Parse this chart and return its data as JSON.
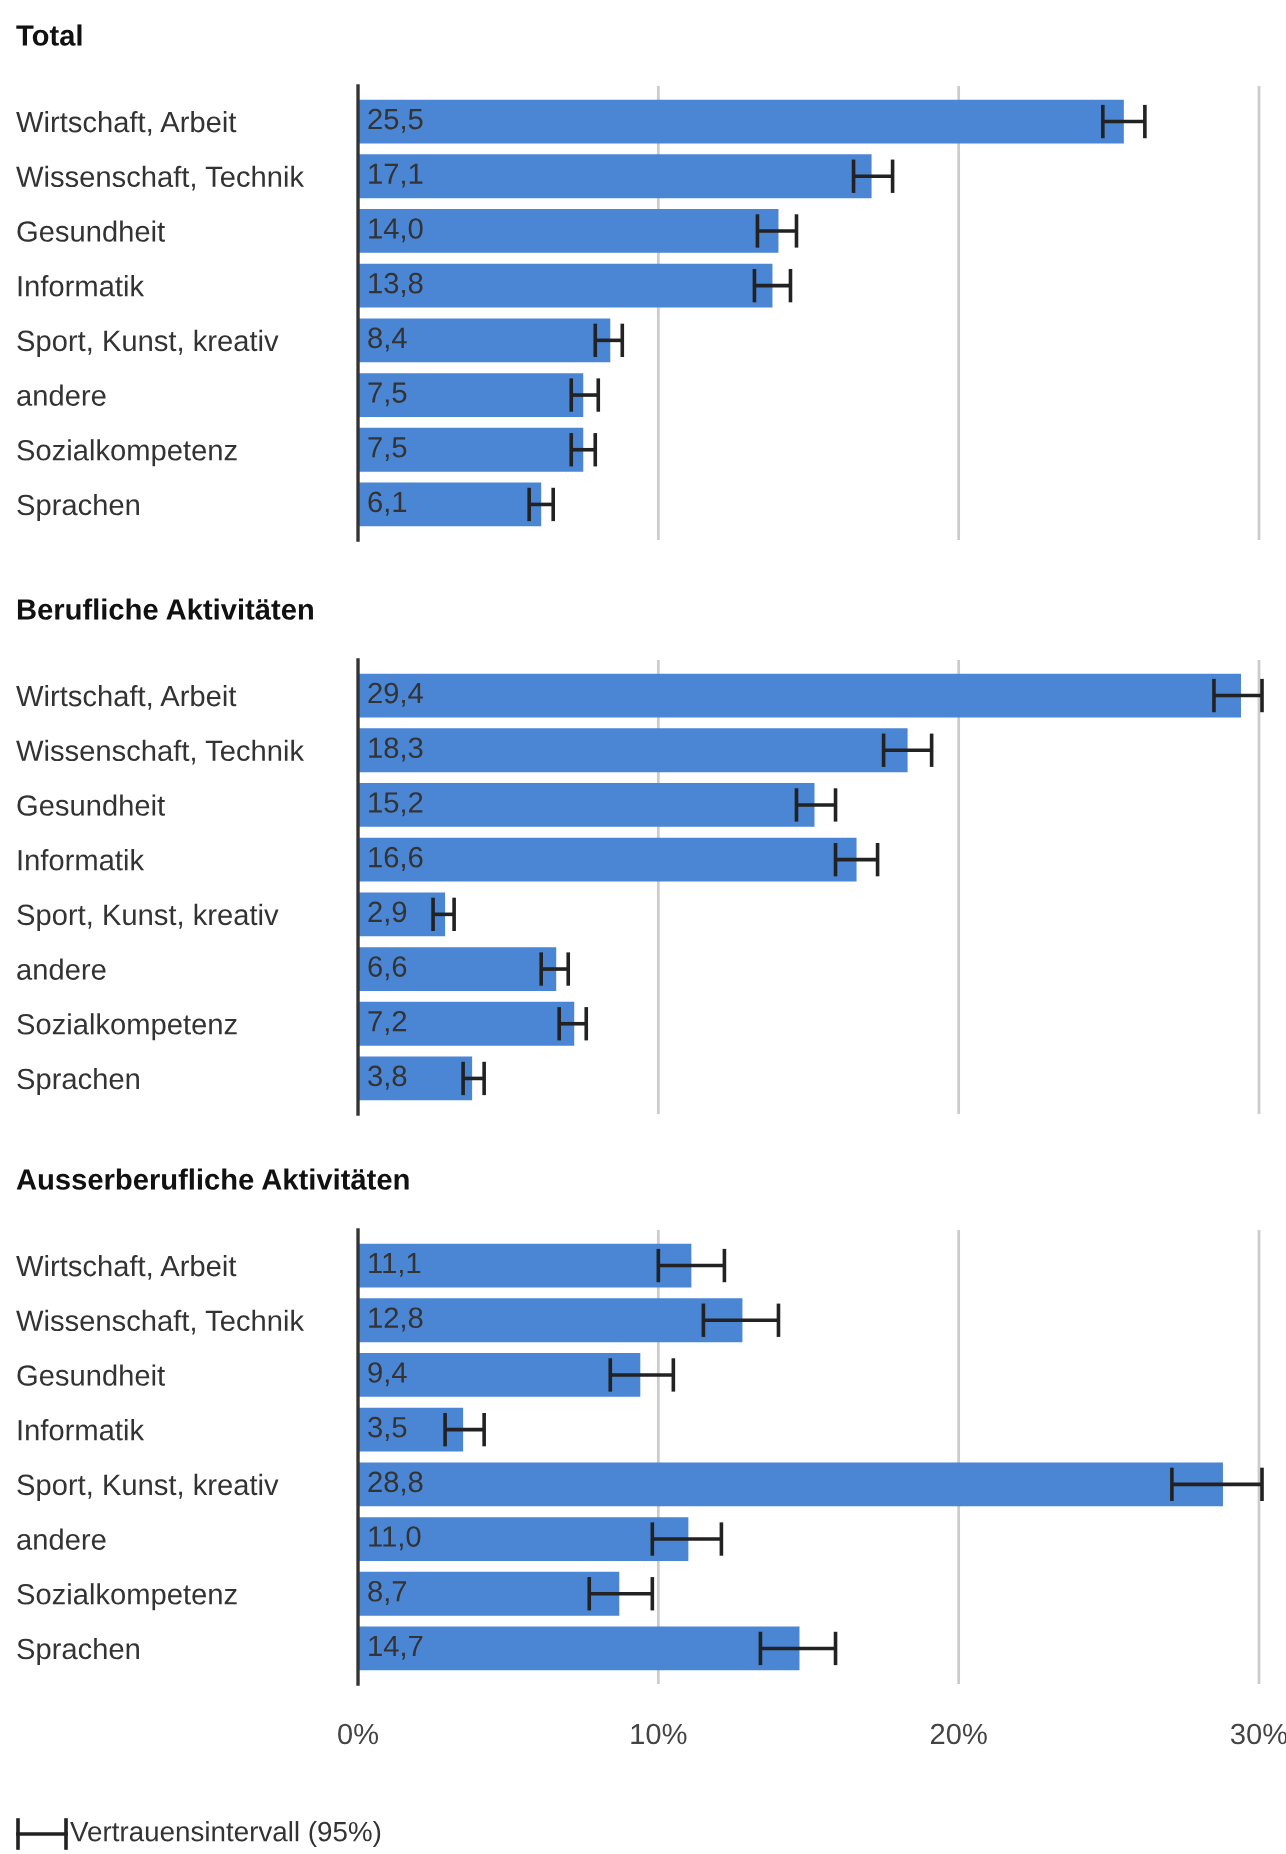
{
  "chart_data": [
    {
      "type": "bar",
      "orientation": "horizontal",
      "title": "Total",
      "categories": [
        "Wirtschaft, Arbeit",
        "Wissenschaft, Technik",
        "Gesundheit",
        "Informatik",
        "Sport, Kunst, kreativ",
        "andere",
        "Sozialkompetenz",
        "Sprachen"
      ],
      "values": [
        25.5,
        17.1,
        14.0,
        13.8,
        8.4,
        7.5,
        7.5,
        6.1
      ],
      "value_labels": [
        "25,5",
        "17,1",
        "14,0",
        "13,8",
        "8,4",
        "7,5",
        "7,5",
        "6,1"
      ],
      "errors": [
        [
          24.8,
          26.2
        ],
        [
          16.5,
          17.8
        ],
        [
          13.3,
          14.6
        ],
        [
          13.2,
          14.4
        ],
        [
          7.9,
          8.8
        ],
        [
          7.1,
          8.0
        ],
        [
          7.1,
          7.9
        ],
        [
          5.7,
          6.5
        ]
      ],
      "color": "#4a86d4",
      "xlim": [
        0,
        30.1
      ],
      "xticks": [
        0,
        10,
        20,
        30
      ],
      "grid": "x",
      "tick_labels": "y"
    },
    {
      "type": "bar",
      "orientation": "horizontal",
      "title": "Berufliche Aktivitäten",
      "categories": [
        "Wirtschaft, Arbeit",
        "Wissenschaft, Technik",
        "Gesundheit",
        "Informatik",
        "Sport, Kunst, kreativ",
        "andere",
        "Sozialkompetenz",
        "Sprachen"
      ],
      "values": [
        29.4,
        18.3,
        15.2,
        16.6,
        2.9,
        6.6,
        7.2,
        3.8
      ],
      "value_labels": [
        "29,4",
        "18,3",
        "15,2",
        "16,6",
        "2,9",
        "6,6",
        "7,2",
        "3,8"
      ],
      "errors": [
        [
          28.5,
          30.1
        ],
        [
          17.5,
          19.1
        ],
        [
          14.6,
          15.9
        ],
        [
          15.9,
          17.3
        ],
        [
          2.5,
          3.2
        ],
        [
          6.1,
          7.0
        ],
        [
          6.7,
          7.6
        ],
        [
          3.5,
          4.2
        ]
      ],
      "color": "#4a86d4",
      "xlim": [
        0,
        30.1
      ],
      "xticks": [
        0,
        10,
        20,
        30
      ],
      "grid": "x",
      "tick_labels": "y"
    },
    {
      "type": "bar",
      "orientation": "horizontal",
      "title": "Ausserberufliche Aktivitäten",
      "categories": [
        "Wirtschaft, Arbeit",
        "Wissenschaft, Technik",
        "Gesundheit",
        "Informatik",
        "Sport, Kunst, kreativ",
        "andere",
        "Sozialkompetenz",
        "Sprachen"
      ],
      "values": [
        11.1,
        12.8,
        9.4,
        3.5,
        28.8,
        11.0,
        8.7,
        14.7
      ],
      "value_labels": [
        "11,1",
        "12,8",
        "9,4",
        "3,5",
        "28,8",
        "11,0",
        "8,7",
        "14,7"
      ],
      "errors": [
        [
          10.0,
          12.2
        ],
        [
          11.5,
          14.0
        ],
        [
          8.4,
          10.5
        ],
        [
          2.9,
          4.2
        ],
        [
          27.1,
          30.1
        ],
        [
          9.8,
          12.1
        ],
        [
          7.7,
          9.8
        ],
        [
          13.4,
          15.9
        ]
      ],
      "color": "#4a86d4",
      "xlim": [
        0,
        30.1
      ],
      "xticks": [
        {
          "value": 0,
          "label": "0%"
        },
        {
          "value": 10,
          "label": "10%"
        },
        {
          "value": 20,
          "label": "20%"
        },
        {
          "value": 30,
          "label": "30%"
        }
      ],
      "grid": "x",
      "annotations": [
        "Vertrauensintervall (95%)"
      ]
    }
  ]
}
